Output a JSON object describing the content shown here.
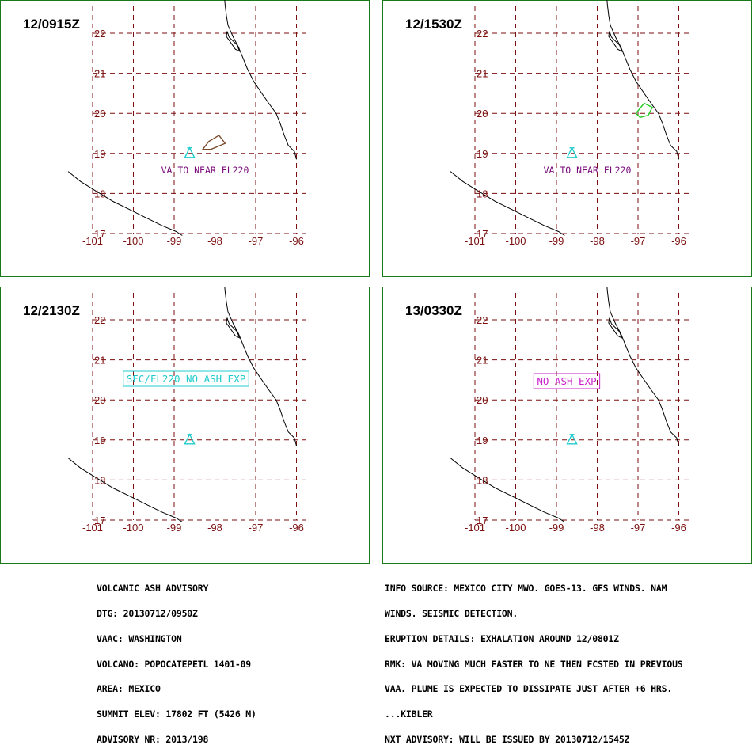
{
  "panels": [
    {
      "time": "12/0915Z",
      "label": "VA TO NEAR FL220",
      "label_style": "plain",
      "label_color": "#7a0a7a",
      "ash": {
        "color": "#7a4a2a",
        "points": [
          [
            -98.3,
            19.1
          ],
          [
            -98.15,
            19.3
          ],
          [
            -97.9,
            19.45
          ],
          [
            -97.75,
            19.25
          ],
          [
            -98.1,
            19.1
          ]
        ]
      }
    },
    {
      "time": "12/1530Z",
      "label": "VA TO NEAR FL220",
      "label_style": "plain",
      "label_color": "#7a0a7a",
      "ash": {
        "color": "#22cc22",
        "points": [
          [
            -97.05,
            20.0
          ],
          [
            -96.85,
            20.25
          ],
          [
            -96.65,
            20.15
          ],
          [
            -96.75,
            19.95
          ],
          [
            -96.95,
            19.9
          ]
        ]
      }
    },
    {
      "time": "12/2130Z",
      "label": "SFC/FL220 NO ASH EXP",
      "label_style": "boxed",
      "label_color": "#22cccc",
      "ash": null
    },
    {
      "time": "13/0330Z",
      "label": "NO ASH EXP",
      "label_style": "boxed",
      "label_color": "#cc22cc",
      "ash": null
    }
  ],
  "map": {
    "lon_ticks": [
      "-101",
      "-100",
      "-99",
      "-98",
      "-97",
      "-96"
    ],
    "lat_ticks": [
      "17",
      "18",
      "19",
      "20",
      "21",
      "22"
    ],
    "volcano": {
      "name": "POPOCATEPETL",
      "lon": -98.62,
      "lat": 19.02,
      "color": "#22cccc"
    },
    "grid_color": "#7b0f0f"
  },
  "advisory": {
    "left": [
      "VOLCANIC ASH ADVISORY",
      "DTG: 20130712/0950Z",
      "VAAC: WASHINGTON",
      "VOLCANO: POPOCATEPETL 1401-09",
      "AREA: MEXICO",
      "SUMMIT ELEV: 17802 FT (5426 M)",
      "ADVISORY NR: 2013/198"
    ],
    "right": [
      "INFO SOURCE: MEXICO CITY MWO. GOES-13. GFS WINDS. NAM",
      "WINDS. SEISMIC DETECTION.",
      "ERUPTION DETAILS: EXHALATION AROUND 12/0801Z",
      "RMK: VA MOVING MUCH FASTER TO NE THEN FCSTED IN PREVIOUS",
      "VAA. PLUME IS EXPECTED TO DISSIPATE JUST AFTER +6 HRS.",
      "...KIBLER",
      "NXT ADVISORY: WILL BE ISSUED BY 20130712/1545Z"
    ]
  }
}
